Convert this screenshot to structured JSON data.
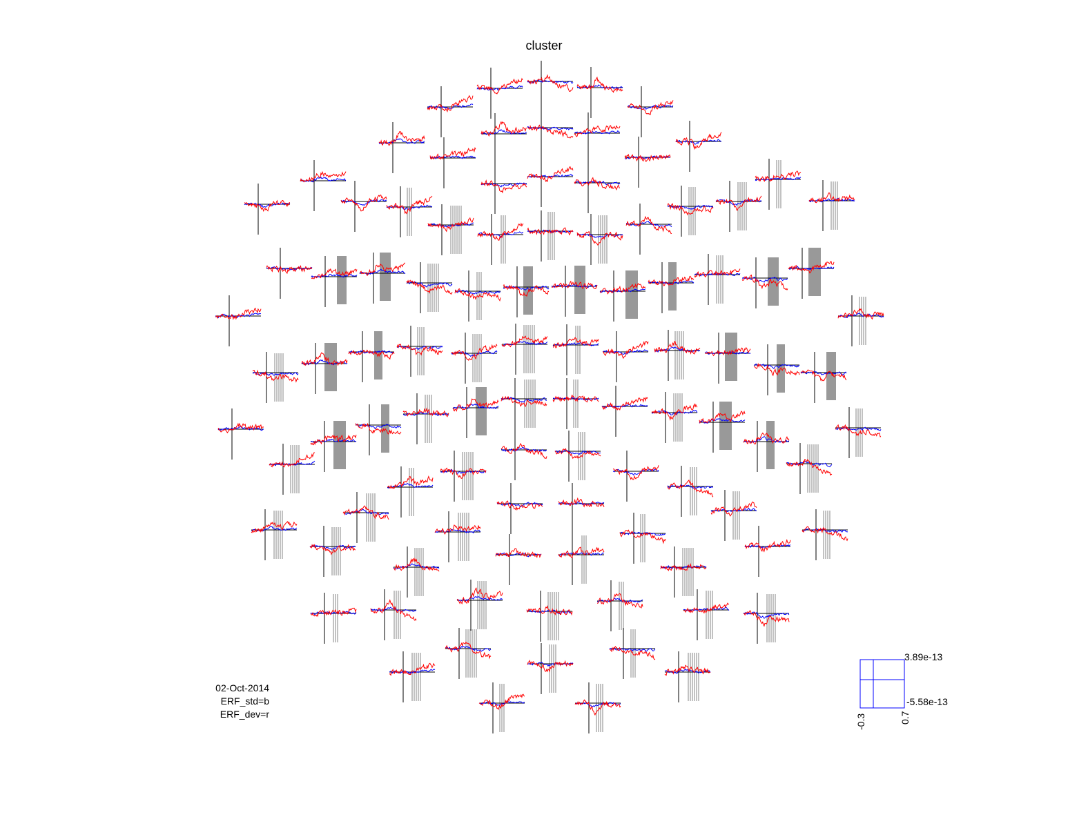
{
  "chart_data": {
    "type": "line",
    "title": "cluster",
    "annotations": [
      "02-Oct-2014",
      "ERF_std=b",
      "ERF_dev=r"
    ],
    "series": [
      {
        "name": "ERF_std",
        "color": "#0000ff"
      },
      {
        "name": "ERF_dev",
        "color": "#ff0000"
      }
    ],
    "scale_box": {
      "xlim": [
        -0.3,
        0.7
      ],
      "ylim": [
        -5.58e-13,
        3.89e-13
      ],
      "x_tick_labels": [
        "-0.3",
        "0.7"
      ],
      "y_tick_labels": [
        "3.89e-13",
        "-5.58e-13"
      ]
    },
    "grid": false,
    "legend": "none",
    "highlight_color": "#999999",
    "baseline_color": "#000000"
  }
}
